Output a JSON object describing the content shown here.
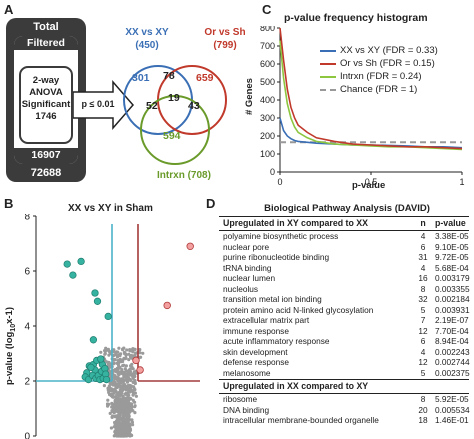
{
  "panels": {
    "a": "A",
    "b": "B",
    "c": "C",
    "d": "D"
  },
  "panel_a": {
    "total_label": "Total",
    "total_value": "72688",
    "filtered_label": "Filtered",
    "filtered_value": "16907",
    "anova_lines": [
      "2-way",
      "ANOVA",
      "Significant",
      "1746"
    ],
    "threshold": "p ≤ 0.01",
    "venn": {
      "set1_name": "XX vs XY",
      "set1_count": "(450)",
      "set2_name": "Or vs Sh",
      "set2_count": "(799)",
      "set3_name": "Intrxn",
      "set3_count": "(708)",
      "only1": "301",
      "only2": "659",
      "only3": "594",
      "s12": "78",
      "s13": "52",
      "s23": "43",
      "s123": "19",
      "colors": {
        "set1": "#3a6fb5",
        "set2": "#c0392b",
        "set3": "#6a9a2a"
      }
    }
  },
  "panel_b": {
    "title": "XX vs XY in Sham",
    "ylabel": "p-value (log10x-1)",
    "ytick_labels": [
      "0",
      "2",
      "4",
      "6",
      "8"
    ],
    "threshold_y": 2,
    "scatter": {
      "type": "scatter",
      "ylim": [
        0,
        8
      ],
      "teal_points": [
        {
          "x": -0.62,
          "y": 6.25
        },
        {
          "x": -0.45,
          "y": 6.35
        },
        {
          "x": -0.55,
          "y": 5.85
        },
        {
          "x": -0.28,
          "y": 5.2
        },
        {
          "x": -0.25,
          "y": 4.9
        },
        {
          "x": -0.12,
          "y": 4.35
        },
        {
          "x": -0.3,
          "y": 3.5
        },
        {
          "x": -0.35,
          "y": 2.55
        },
        {
          "x": -0.3,
          "y": 2.6
        },
        {
          "x": -0.28,
          "y": 2.4
        },
        {
          "x": -0.38,
          "y": 2.3
        },
        {
          "x": -0.4,
          "y": 2.15
        },
        {
          "x": -0.36,
          "y": 2.05
        },
        {
          "x": -0.33,
          "y": 2.5
        },
        {
          "x": -0.31,
          "y": 2.2
        },
        {
          "x": -0.27,
          "y": 2.1
        },
        {
          "x": -0.24,
          "y": 2.2
        },
        {
          "x": -0.22,
          "y": 2.05
        },
        {
          "x": -0.2,
          "y": 2.35
        },
        {
          "x": -0.19,
          "y": 2.6
        },
        {
          "x": -0.18,
          "y": 2.1
        },
        {
          "x": -0.16,
          "y": 2.45
        },
        {
          "x": -0.15,
          "y": 2.25
        },
        {
          "x": -0.14,
          "y": 2.05
        },
        {
          "x": -0.26,
          "y": 2.75
        },
        {
          "x": -0.21,
          "y": 2.8
        }
      ],
      "red_points": [
        {
          "x": 0.88,
          "y": 6.9
        },
        {
          "x": 0.6,
          "y": 4.75
        },
        {
          "x": 0.22,
          "y": 2.75
        },
        {
          "x": 0.27,
          "y": 2.4
        }
      ],
      "gray_cloud_note": ""
    }
  },
  "panel_c": {
    "title": "p-value frequency histogram",
    "ylabel": "# Genes",
    "xlabel": "p-value",
    "y_ticks": [
      "0",
      "100",
      "200",
      "300",
      "400",
      "500",
      "600",
      "700",
      "800"
    ],
    "x_ticks": [
      "0",
      "0.5",
      "1"
    ],
    "legend": [
      {
        "label": "XX vs XY (FDR = 0.33)",
        "color": "#3a6fb5",
        "dash": false
      },
      {
        "label": "Or vs Sh (FDR = 0.15)",
        "color": "#c0392b",
        "dash": false
      },
      {
        "label": "Intrxn (FDR = 0.24)",
        "color": "#8dc63f",
        "dash": false
      },
      {
        "label": "Chance (FDR = 1)",
        "color": "#999999",
        "dash": true
      }
    ]
  },
  "chart_data": [
    {
      "type": "line",
      "title": "p-value frequency histogram",
      "xlabel": "p-value",
      "ylabel": "# Genes",
      "xlim": [
        0,
        1
      ],
      "ylim": [
        0,
        800
      ],
      "x": [
        0.0,
        0.02,
        0.04,
        0.06,
        0.08,
        0.1,
        0.15,
        0.2,
        0.3,
        0.4,
        0.5,
        0.6,
        0.7,
        0.8,
        0.9,
        1.0
      ],
      "series": [
        {
          "name": "XX vs XY (FDR = 0.33)",
          "values": [
            300,
            230,
            200,
            185,
            175,
            170,
            165,
            160,
            155,
            150,
            150,
            148,
            145,
            140,
            140,
            135
          ]
        },
        {
          "name": "Or vs Sh (FDR = 0.15)",
          "values": [
            800,
            620,
            460,
            360,
            300,
            260,
            220,
            190,
            170,
            155,
            150,
            145,
            140,
            140,
            135,
            130
          ]
        },
        {
          "name": "Intrxn (FDR = 0.24)",
          "values": [
            730,
            520,
            380,
            300,
            250,
            220,
            190,
            170,
            155,
            150,
            145,
            140,
            140,
            135,
            130,
            125
          ]
        },
        {
          "name": "Chance (FDR = 1)",
          "values": [
            165,
            165,
            165,
            165,
            165,
            165,
            165,
            165,
            165,
            165,
            165,
            165,
            165,
            165,
            165,
            165
          ]
        }
      ]
    }
  ],
  "panel_d": {
    "title": "Biological Pathway Analysis (DAVID)",
    "section1_title": "Upregulated in XY compared to XX",
    "col_n": "n",
    "col_p": "p-value",
    "section1_rows": [
      {
        "term": "polyamine biosynthetic process",
        "n": "4",
        "p": "3.38E-05"
      },
      {
        "term": "nuclear pore",
        "n": "6",
        "p": "9.10E-05"
      },
      {
        "term": "purine ribonucleotide binding",
        "n": "31",
        "p": "9.72E-05"
      },
      {
        "term": "tRNA binding",
        "n": "4",
        "p": "5.68E-04"
      },
      {
        "term": "nuclear lumen",
        "n": "16",
        "p": "0.003179"
      },
      {
        "term": "nucleolus",
        "n": "8",
        "p": "0.003355"
      },
      {
        "term": "transition metal ion binding",
        "n": "32",
        "p": "0.002184"
      },
      {
        "term": "protein amino acid N-linked glycosylation",
        "n": "5",
        "p": "0.003931"
      },
      {
        "term": "extracellular matrix part",
        "n": "7",
        "p": "2.19E-07"
      },
      {
        "term": "immune response",
        "n": "12",
        "p": "7.70E-04"
      },
      {
        "term": "acute inflammatory response",
        "n": "6",
        "p": "8.94E-04"
      },
      {
        "term": "skin development",
        "n": "4",
        "p": "0.002243"
      },
      {
        "term": "defense response",
        "n": "12",
        "p": "0.002744"
      },
      {
        "term": "melanosome",
        "n": "5",
        "p": "0.002375"
      }
    ],
    "section2_title": "Upregulated in XX compared to XY",
    "section2_rows": [
      {
        "term": "ribosome",
        "n": "8",
        "p": "5.92E-05"
      },
      {
        "term": "DNA binding",
        "n": "20",
        "p": "0.005534"
      },
      {
        "term": "intracellular membrane-bounded organelle",
        "n": "18",
        "p": "1.46E-01"
      }
    ]
  }
}
